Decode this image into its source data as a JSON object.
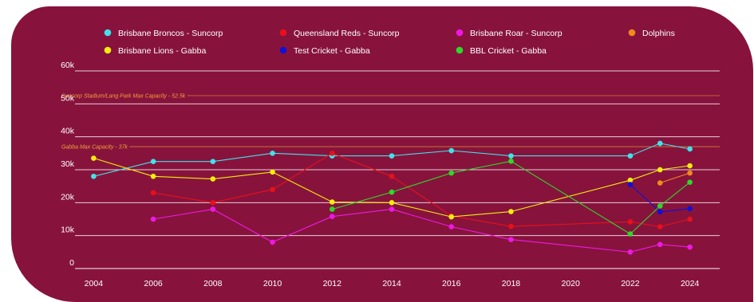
{
  "chart_data": {
    "type": "line",
    "title": "",
    "xlabel": "",
    "ylabel": "",
    "x_ticks": [
      2004,
      2006,
      2008,
      2010,
      2012,
      2014,
      2016,
      2018,
      2020,
      2022,
      2024
    ],
    "y_ticks": [
      {
        "value": 0,
        "label": "0"
      },
      {
        "value": 10000,
        "label": "10k"
      },
      {
        "value": 20000,
        "label": "20k"
      },
      {
        "value": 30000,
        "label": "30k"
      },
      {
        "value": 40000,
        "label": "40k"
      },
      {
        "value": 50000,
        "label": "50k"
      },
      {
        "value": 60000,
        "label": "60k"
      }
    ],
    "xlim": [
      2003,
      2025
    ],
    "ylim": [
      0,
      60000
    ],
    "grid": true,
    "legend_position": "top",
    "annotations": [
      {
        "label": "Suncorp Stadium/Lang Park Max Capacity - 52.5k",
        "value": 52500
      },
      {
        "label": "Gabba Max Capacity - 37k",
        "value": 37000
      }
    ],
    "series": [
      {
        "name": "Brisbane Broncos - Suncorp",
        "color": "#3fe3ea",
        "points": [
          [
            2004,
            28000
          ],
          [
            2006,
            32500
          ],
          [
            2008,
            32500
          ],
          [
            2010,
            35000
          ],
          [
            2012,
            34200
          ],
          [
            2014,
            34200
          ],
          [
            2016,
            35800
          ],
          [
            2018,
            34200
          ],
          [
            2022,
            34200
          ],
          [
            2023,
            38000
          ],
          [
            2024,
            36300
          ]
        ]
      },
      {
        "name": "Queensland Reds - Suncorp",
        "color": "#e8101a",
        "points": [
          [
            2006,
            23000
          ],
          [
            2008,
            20000
          ],
          [
            2010,
            24000
          ],
          [
            2012,
            35000
          ],
          [
            2014,
            28000
          ],
          [
            2016,
            16000
          ],
          [
            2018,
            12800
          ],
          [
            2022,
            14200
          ],
          [
            2023,
            12700
          ],
          [
            2024,
            15000
          ]
        ]
      },
      {
        "name": "Brisbane Roar - Suncorp",
        "color": "#ee18e6",
        "points": [
          [
            2006,
            15000
          ],
          [
            2008,
            18000
          ],
          [
            2010,
            8000
          ],
          [
            2012,
            15800
          ],
          [
            2014,
            18000
          ],
          [
            2016,
            12700
          ],
          [
            2018,
            8800
          ],
          [
            2022,
            5000
          ],
          [
            2023,
            7300
          ],
          [
            2024,
            6500
          ]
        ]
      },
      {
        "name": "Dolphins",
        "color": "#f28a1a",
        "points": [
          [
            2023,
            26000
          ],
          [
            2024,
            29000
          ]
        ]
      },
      {
        "name": "Brisbane Lions - Gabba",
        "color": "#f4ec0e",
        "points": [
          [
            2004,
            33500
          ],
          [
            2006,
            28000
          ],
          [
            2008,
            27200
          ],
          [
            2010,
            29300
          ],
          [
            2012,
            20200
          ],
          [
            2014,
            20000
          ],
          [
            2016,
            15700
          ],
          [
            2018,
            17300
          ],
          [
            2022,
            26800
          ],
          [
            2023,
            30000
          ],
          [
            2024,
            31200
          ]
        ]
      },
      {
        "name": "Test Cricket - Gabba",
        "color": "#1010d8",
        "points": [
          [
            2022,
            25500
          ],
          [
            2023,
            17200
          ],
          [
            2024,
            18200
          ]
        ]
      },
      {
        "name": "BBL Cricket - Gabba",
        "color": "#2ed82a",
        "points": [
          [
            2012,
            18000
          ],
          [
            2014,
            23200
          ],
          [
            2016,
            29000
          ],
          [
            2018,
            32600
          ],
          [
            2022,
            10500
          ],
          [
            2023,
            19000
          ],
          [
            2024,
            26200
          ]
        ]
      }
    ]
  }
}
